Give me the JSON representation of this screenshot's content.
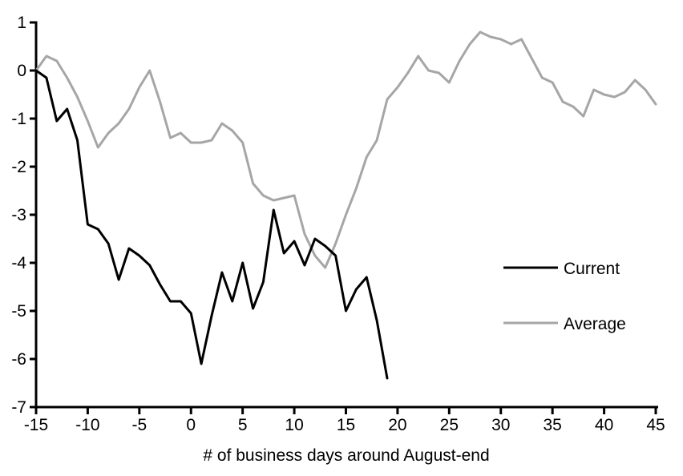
{
  "chart_data": {
    "type": "line",
    "title": "",
    "xlabel": "# of business days around August-end",
    "ylabel": "",
    "xlim": [
      -15,
      45
    ],
    "ylim": [
      -7,
      1
    ],
    "x_ticks": [
      -15,
      -10,
      -5,
      0,
      5,
      10,
      15,
      20,
      25,
      30,
      35,
      40,
      45
    ],
    "y_ticks": [
      1,
      0,
      -1,
      -2,
      -3,
      -4,
      -5,
      -6,
      -7
    ],
    "grid": false,
    "legend_position": "right-middle",
    "axis_color": "#000000",
    "series": [
      {
        "name": "Current",
        "color": "#000000",
        "x": [
          -15,
          -14,
          -13,
          -12,
          -11,
          -10,
          -9,
          -8,
          -7,
          -6,
          -5,
          -4,
          -3,
          -2,
          -1,
          0,
          1,
          2,
          3,
          4,
          5,
          6,
          7,
          8,
          9,
          10,
          11,
          12,
          13,
          14,
          15,
          16,
          17,
          18,
          19
        ],
        "values": [
          0,
          -0.15,
          -1.05,
          -0.8,
          -1.45,
          -3.2,
          -3.3,
          -3.6,
          -4.35,
          -3.7,
          -3.85,
          -4.05,
          -4.45,
          -4.8,
          -4.8,
          -5.05,
          -6.1,
          -5.1,
          -4.2,
          -4.8,
          -4.0,
          -4.95,
          -4.4,
          -2.9,
          -3.8,
          -3.55,
          -4.05,
          -3.5,
          -3.65,
          -3.85,
          -5.0,
          -4.55,
          -4.3,
          -5.2,
          -6.4
        ]
      },
      {
        "name": "Average",
        "color": "#a6a6a6",
        "x": [
          -15,
          -14,
          -13,
          -12,
          -11,
          -10,
          -9,
          -8,
          -7,
          -6,
          -5,
          -4,
          -3,
          -2,
          -1,
          0,
          1,
          2,
          3,
          4,
          5,
          6,
          7,
          8,
          9,
          10,
          11,
          12,
          13,
          14,
          15,
          16,
          17,
          18,
          19,
          20,
          21,
          22,
          23,
          24,
          25,
          26,
          27,
          28,
          29,
          30,
          31,
          32,
          33,
          34,
          35,
          36,
          37,
          38,
          39,
          40,
          41,
          42,
          43,
          44,
          45
        ],
        "values": [
          0,
          0.3,
          0.2,
          -0.15,
          -0.55,
          -1.05,
          -1.6,
          -1.3,
          -1.1,
          -0.8,
          -0.35,
          0.0,
          -0.65,
          -1.4,
          -1.3,
          -1.5,
          -1.5,
          -1.45,
          -1.1,
          -1.25,
          -1.5,
          -2.35,
          -2.6,
          -2.7,
          -2.65,
          -2.6,
          -3.4,
          -3.85,
          -4.1,
          -3.6,
          -3.0,
          -2.45,
          -1.8,
          -1.45,
          -0.6,
          -0.35,
          -0.05,
          0.3,
          0.0,
          -0.05,
          -0.25,
          0.2,
          0.55,
          0.8,
          0.7,
          0.65,
          0.55,
          0.65,
          0.25,
          -0.15,
          -0.25,
          -0.65,
          -0.75,
          -0.95,
          -0.4,
          -0.5,
          -0.55,
          -0.45,
          -0.2,
          -0.4,
          -0.7
        ]
      }
    ]
  }
}
